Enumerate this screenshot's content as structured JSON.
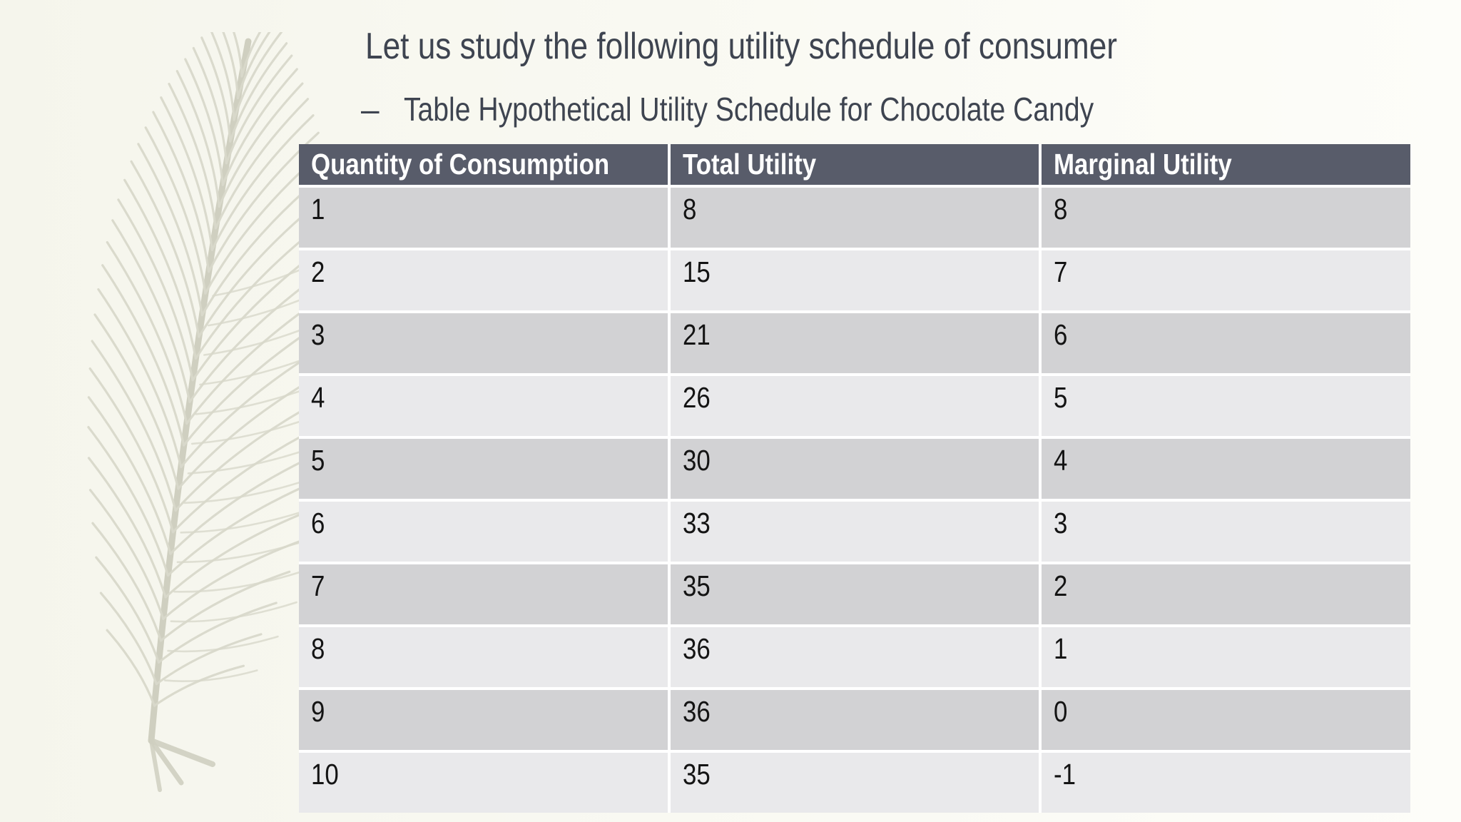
{
  "title": "Let us study the following utility schedule of consumer",
  "subtitle": {
    "bullet": "–",
    "text": "Table Hypothetical Utility Schedule for Chocolate Candy"
  },
  "table": {
    "headers": [
      "Quantity of Consumption",
      "Total Utility",
      "Marginal Utility"
    ],
    "rows": [
      [
        "1",
        "8",
        "8"
      ],
      [
        "2",
        "15",
        "7"
      ],
      [
        "3",
        "21",
        "6"
      ],
      [
        "4",
        "26",
        "5"
      ],
      [
        "5",
        "30",
        "4"
      ],
      [
        "6",
        "33",
        "3"
      ],
      [
        "7",
        "35",
        "2"
      ],
      [
        "8",
        "36",
        "1"
      ],
      [
        "9",
        "36",
        "0"
      ],
      [
        "10",
        "35",
        "-1"
      ]
    ]
  },
  "decoration": {
    "name": "feather-illustration",
    "color": "#d8d8ca",
    "shaft_color": "#cfcfc0"
  },
  "colors": {
    "bg_left": "#f5f5ec",
    "bg_right": "#fdfdf9",
    "title_text": "#3e4450",
    "header_bg": "#585c6a",
    "header_text": "#ffffff",
    "row_odd": "#d2d2d4",
    "row_even": "#e9e9eb",
    "cell_text": "#141414",
    "row_separator": "#ffffff"
  }
}
